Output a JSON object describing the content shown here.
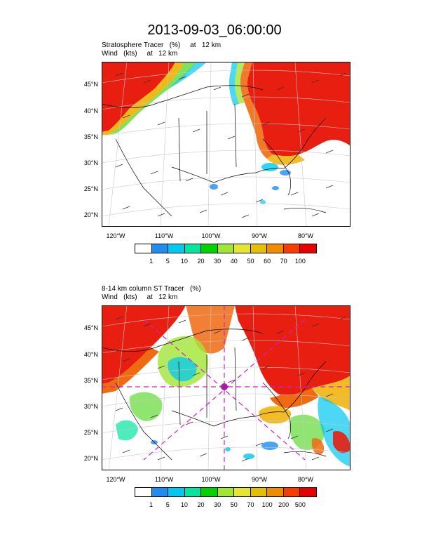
{
  "title": "2013-09-03_06:00:00",
  "panel1": {
    "header_line1": "Stratosphere Tracer   (%)     at   12 km",
    "header_line2": "Wind   (kts)     at   12 km",
    "lat_labels": [
      "45°N",
      "40°N",
      "35°N",
      "30°N",
      "25°N",
      "20°N"
    ],
    "lon_labels": [
      "120°W",
      "110°W",
      "100°W",
      "90°W",
      "80°W"
    ],
    "colorbar_labels": [
      "1",
      "5",
      "10",
      "20",
      "30",
      "40",
      "50",
      "60",
      "70",
      "100"
    ]
  },
  "panel2": {
    "header_line1": "8-14 km column ST Tracer   (%)",
    "header_line2": "Wind   (kts)     at   12 km",
    "lat_labels": [
      "45°N",
      "40°N",
      "35°N",
      "30°N",
      "25°N",
      "20°N"
    ],
    "lon_labels": [
      "120°W",
      "110°W",
      "100°W",
      "90°W",
      "80°W"
    ],
    "colorbar_labels": [
      "1",
      "5",
      "10",
      "20",
      "30",
      "50",
      "70",
      "100",
      "200",
      "500"
    ]
  },
  "colors": {
    "palette": [
      "#ffffff",
      "#1e8cf0",
      "#00c8f0",
      "#00e6a0",
      "#00d200",
      "#a0e632",
      "#e6e632",
      "#e6be00",
      "#f08c00",
      "#fa3c00",
      "#e60000"
    ],
    "red": "#e81e10",
    "orange": "#f06a10",
    "cross_section": "#d020d0"
  }
}
